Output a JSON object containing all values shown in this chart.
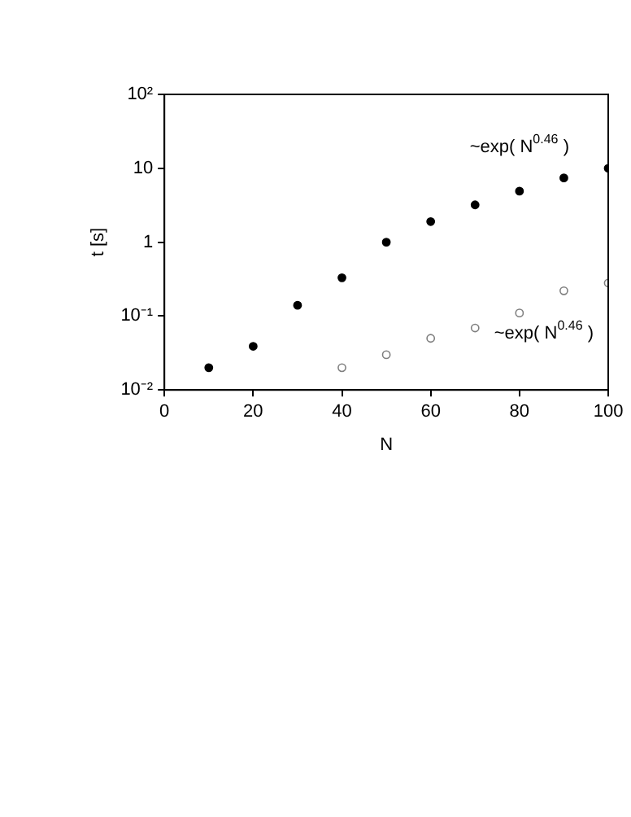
{
  "chart_data": {
    "type": "scatter",
    "xlabel": "N",
    "ylabel": "t [s]",
    "log": "y",
    "grid": false,
    "legend": false,
    "marker": "circle",
    "xlim": [
      0,
      100
    ],
    "xticks": [
      0,
      20,
      40,
      60,
      80,
      100
    ],
    "ylim": [
      0.01,
      100
    ],
    "yticks": [
      {
        "value": 0.01,
        "label": "10⁻²"
      },
      {
        "value": 0.1,
        "label": "10⁻¹"
      },
      1,
      10,
      {
        "value": 100,
        "label": "10²"
      }
    ],
    "series": [
      {
        "color": "#000000",
        "x": [
          10,
          20,
          30,
          40,
          50,
          60,
          70,
          80,
          90,
          100
        ],
        "values": [
          0.02,
          0.039,
          0.14,
          0.33,
          1,
          1.9,
          3.2,
          4.9,
          7.4,
          10
        ]
      },
      {
        "color": "#7f7f7f",
        "x": [
          40,
          50,
          60,
          70,
          80,
          90,
          100
        ],
        "values": [
          0.02,
          0.03,
          0.05,
          0.069,
          0.11,
          0.22,
          0.28
        ]
      }
    ],
    "annotations": [
      "~exp( N$^{0.46}$ )",
      "~exp( N$^{0.46}$ )"
    ]
  }
}
